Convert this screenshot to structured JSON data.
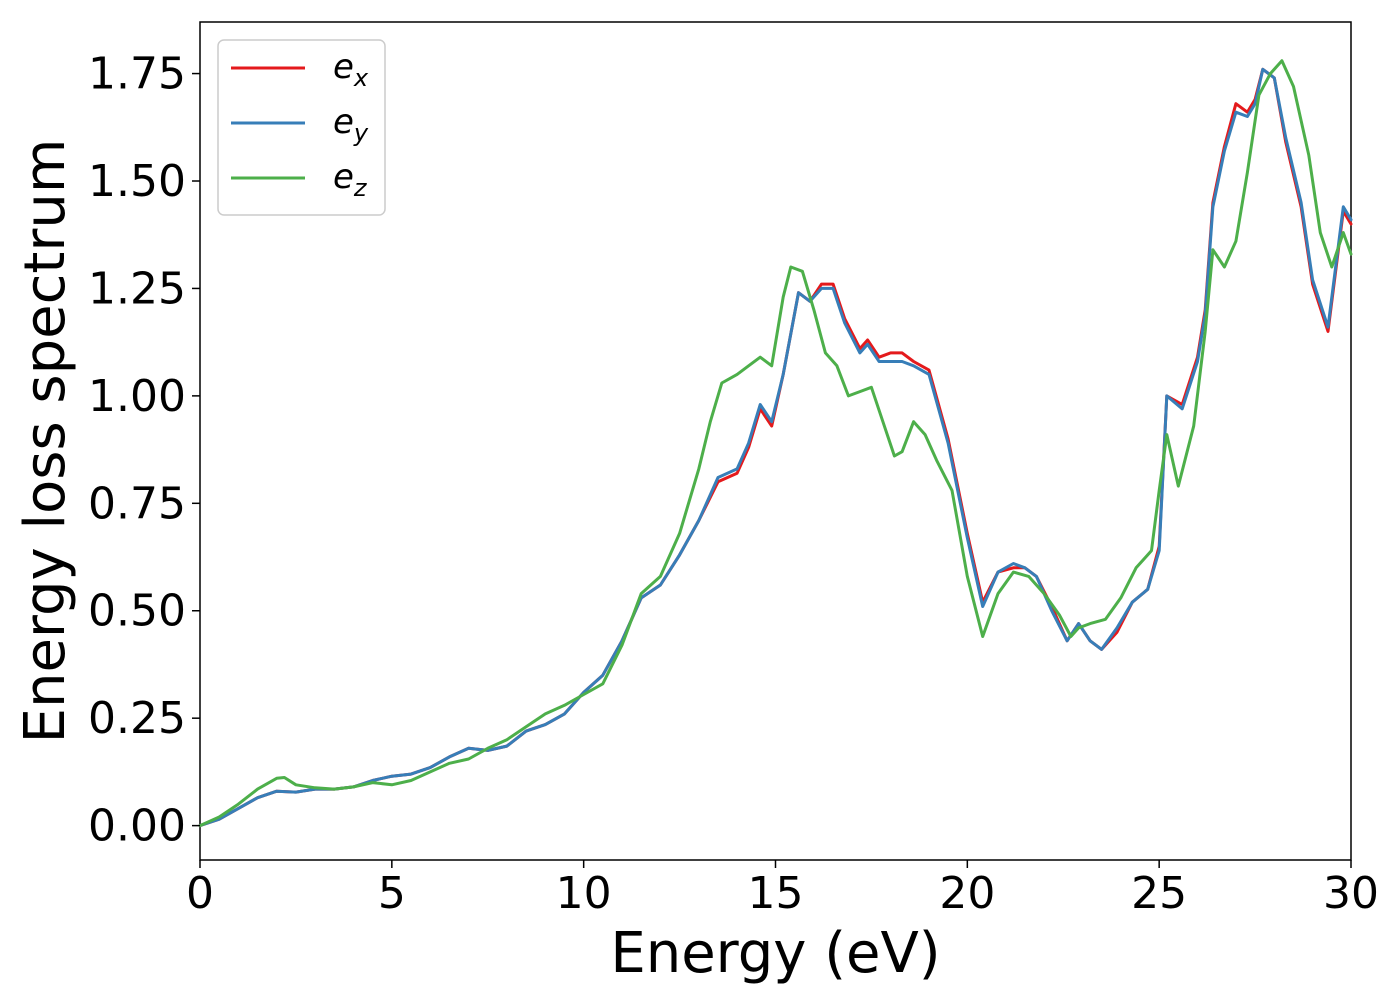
{
  "chart_data": {
    "type": "line",
    "title": "",
    "xlabel": "Energy (eV)",
    "ylabel": "Energy loss spectrum",
    "xlim": [
      0,
      30
    ],
    "ylim": [
      -0.08,
      1.87
    ],
    "x_ticks": [
      0,
      5,
      10,
      15,
      20,
      25,
      30
    ],
    "x_tick_labels": [
      "0",
      "5",
      "10",
      "15",
      "20",
      "25",
      "30"
    ],
    "y_ticks": [
      0.0,
      0.25,
      0.5,
      0.75,
      1.0,
      1.25,
      1.5,
      1.75
    ],
    "y_tick_labels": [
      "0.00",
      "0.25",
      "0.50",
      "0.75",
      "1.00",
      "1.25",
      "1.50",
      "1.75"
    ],
    "grid": false,
    "legend_position": "top-left",
    "series": [
      {
        "name": "e",
        "subscript": "x",
        "color": "#e41a1c",
        "points": [
          [
            0,
            0.0
          ],
          [
            0.5,
            0.015
          ],
          [
            1.0,
            0.04
          ],
          [
            1.5,
            0.065
          ],
          [
            2.0,
            0.08
          ],
          [
            2.5,
            0.078
          ],
          [
            3.0,
            0.085
          ],
          [
            3.5,
            0.085
          ],
          [
            4.0,
            0.09
          ],
          [
            4.5,
            0.105
          ],
          [
            5.0,
            0.115
          ],
          [
            5.5,
            0.12
          ],
          [
            6.0,
            0.135
          ],
          [
            6.5,
            0.16
          ],
          [
            7.0,
            0.18
          ],
          [
            7.5,
            0.175
          ],
          [
            8.0,
            0.185
          ],
          [
            8.5,
            0.22
          ],
          [
            9.0,
            0.235
          ],
          [
            9.5,
            0.26
          ],
          [
            10.0,
            0.31
          ],
          [
            10.5,
            0.35
          ],
          [
            11.0,
            0.43
          ],
          [
            11.5,
            0.53
          ],
          [
            12.0,
            0.56
          ],
          [
            12.5,
            0.63
          ],
          [
            13.0,
            0.71
          ],
          [
            13.5,
            0.8
          ],
          [
            14.0,
            0.82
          ],
          [
            14.3,
            0.88
          ],
          [
            14.6,
            0.97
          ],
          [
            14.9,
            0.93
          ],
          [
            15.2,
            1.05
          ],
          [
            15.6,
            1.24
          ],
          [
            15.9,
            1.22
          ],
          [
            16.2,
            1.26
          ],
          [
            16.5,
            1.26
          ],
          [
            16.8,
            1.18
          ],
          [
            17.2,
            1.11
          ],
          [
            17.4,
            1.13
          ],
          [
            17.7,
            1.09
          ],
          [
            18.0,
            1.1
          ],
          [
            18.3,
            1.1
          ],
          [
            18.6,
            1.08
          ],
          [
            19.0,
            1.06
          ],
          [
            19.5,
            0.9
          ],
          [
            20.0,
            0.68
          ],
          [
            20.4,
            0.52
          ],
          [
            20.8,
            0.59
          ],
          [
            21.2,
            0.6
          ],
          [
            21.5,
            0.6
          ],
          [
            21.8,
            0.58
          ],
          [
            22.2,
            0.51
          ],
          [
            22.6,
            0.43
          ],
          [
            22.9,
            0.47
          ],
          [
            23.2,
            0.43
          ],
          [
            23.5,
            0.41
          ],
          [
            23.9,
            0.45
          ],
          [
            24.3,
            0.52
          ],
          [
            24.7,
            0.55
          ],
          [
            25.0,
            0.65
          ],
          [
            25.2,
            1.0
          ],
          [
            25.6,
            0.98
          ],
          [
            26.0,
            1.09
          ],
          [
            26.2,
            1.2
          ],
          [
            26.4,
            1.45
          ],
          [
            26.7,
            1.58
          ],
          [
            27.0,
            1.68
          ],
          [
            27.3,
            1.66
          ],
          [
            27.5,
            1.69
          ],
          [
            27.7,
            1.76
          ],
          [
            28.0,
            1.74
          ],
          [
            28.3,
            1.59
          ],
          [
            28.7,
            1.44
          ],
          [
            29.0,
            1.26
          ],
          [
            29.4,
            1.15
          ],
          [
            29.8,
            1.43
          ],
          [
            30.0,
            1.4
          ]
        ]
      },
      {
        "name": "e",
        "subscript": "y",
        "color": "#377eb8",
        "points": [
          [
            0,
            0.0
          ],
          [
            0.5,
            0.015
          ],
          [
            1.0,
            0.04
          ],
          [
            1.5,
            0.065
          ],
          [
            2.0,
            0.08
          ],
          [
            2.5,
            0.078
          ],
          [
            3.0,
            0.085
          ],
          [
            3.5,
            0.085
          ],
          [
            4.0,
            0.09
          ],
          [
            4.5,
            0.105
          ],
          [
            5.0,
            0.115
          ],
          [
            5.5,
            0.12
          ],
          [
            6.0,
            0.135
          ],
          [
            6.5,
            0.16
          ],
          [
            7.0,
            0.18
          ],
          [
            7.5,
            0.175
          ],
          [
            8.0,
            0.185
          ],
          [
            8.5,
            0.22
          ],
          [
            9.0,
            0.235
          ],
          [
            9.5,
            0.26
          ],
          [
            10.0,
            0.31
          ],
          [
            10.5,
            0.35
          ],
          [
            11.0,
            0.43
          ],
          [
            11.5,
            0.53
          ],
          [
            12.0,
            0.56
          ],
          [
            12.5,
            0.63
          ],
          [
            13.0,
            0.71
          ],
          [
            13.5,
            0.81
          ],
          [
            14.0,
            0.83
          ],
          [
            14.3,
            0.89
          ],
          [
            14.6,
            0.98
          ],
          [
            14.9,
            0.94
          ],
          [
            15.2,
            1.05
          ],
          [
            15.6,
            1.24
          ],
          [
            15.9,
            1.22
          ],
          [
            16.2,
            1.25
          ],
          [
            16.5,
            1.25
          ],
          [
            16.8,
            1.17
          ],
          [
            17.2,
            1.1
          ],
          [
            17.4,
            1.12
          ],
          [
            17.7,
            1.08
          ],
          [
            18.0,
            1.08
          ],
          [
            18.3,
            1.08
          ],
          [
            18.6,
            1.07
          ],
          [
            19.0,
            1.05
          ],
          [
            19.5,
            0.89
          ],
          [
            20.0,
            0.67
          ],
          [
            20.4,
            0.51
          ],
          [
            20.8,
            0.59
          ],
          [
            21.2,
            0.61
          ],
          [
            21.5,
            0.6
          ],
          [
            21.8,
            0.58
          ],
          [
            22.2,
            0.5
          ],
          [
            22.6,
            0.43
          ],
          [
            22.9,
            0.47
          ],
          [
            23.2,
            0.43
          ],
          [
            23.5,
            0.41
          ],
          [
            23.9,
            0.46
          ],
          [
            24.3,
            0.52
          ],
          [
            24.7,
            0.55
          ],
          [
            25.0,
            0.64
          ],
          [
            25.2,
            1.0
          ],
          [
            25.6,
            0.97
          ],
          [
            26.0,
            1.08
          ],
          [
            26.2,
            1.19
          ],
          [
            26.4,
            1.44
          ],
          [
            26.7,
            1.57
          ],
          [
            27.0,
            1.66
          ],
          [
            27.3,
            1.65
          ],
          [
            27.5,
            1.68
          ],
          [
            27.7,
            1.76
          ],
          [
            28.0,
            1.74
          ],
          [
            28.3,
            1.6
          ],
          [
            28.7,
            1.45
          ],
          [
            29.0,
            1.27
          ],
          [
            29.4,
            1.16
          ],
          [
            29.8,
            1.44
          ],
          [
            30.0,
            1.41
          ]
        ]
      },
      {
        "name": "e",
        "subscript": "z",
        "color": "#4daf4a",
        "points": [
          [
            0,
            0.0
          ],
          [
            0.5,
            0.02
          ],
          [
            1.0,
            0.05
          ],
          [
            1.5,
            0.085
          ],
          [
            2.0,
            0.11
          ],
          [
            2.2,
            0.112
          ],
          [
            2.5,
            0.095
          ],
          [
            3.0,
            0.088
          ],
          [
            3.5,
            0.085
          ],
          [
            4.0,
            0.09
          ],
          [
            4.5,
            0.1
          ],
          [
            5.0,
            0.095
          ],
          [
            5.5,
            0.105
          ],
          [
            6.0,
            0.125
          ],
          [
            6.5,
            0.145
          ],
          [
            7.0,
            0.155
          ],
          [
            7.5,
            0.18
          ],
          [
            8.0,
            0.2
          ],
          [
            8.5,
            0.23
          ],
          [
            9.0,
            0.26
          ],
          [
            9.5,
            0.28
          ],
          [
            10.0,
            0.305
          ],
          [
            10.5,
            0.33
          ],
          [
            11.0,
            0.42
          ],
          [
            11.5,
            0.54
          ],
          [
            12.0,
            0.58
          ],
          [
            12.5,
            0.68
          ],
          [
            13.0,
            0.83
          ],
          [
            13.3,
            0.94
          ],
          [
            13.6,
            1.03
          ],
          [
            14.0,
            1.05
          ],
          [
            14.3,
            1.07
          ],
          [
            14.6,
            1.09
          ],
          [
            14.9,
            1.07
          ],
          [
            15.2,
            1.23
          ],
          [
            15.4,
            1.3
          ],
          [
            15.7,
            1.29
          ],
          [
            16.0,
            1.2
          ],
          [
            16.3,
            1.1
          ],
          [
            16.6,
            1.07
          ],
          [
            16.9,
            1.0
          ],
          [
            17.2,
            1.01
          ],
          [
            17.5,
            1.02
          ],
          [
            17.8,
            0.94
          ],
          [
            18.1,
            0.86
          ],
          [
            18.3,
            0.87
          ],
          [
            18.6,
            0.94
          ],
          [
            18.9,
            0.91
          ],
          [
            19.2,
            0.85
          ],
          [
            19.6,
            0.78
          ],
          [
            20.0,
            0.58
          ],
          [
            20.4,
            0.44
          ],
          [
            20.8,
            0.54
          ],
          [
            21.2,
            0.59
          ],
          [
            21.6,
            0.58
          ],
          [
            22.0,
            0.54
          ],
          [
            22.4,
            0.49
          ],
          [
            22.7,
            0.44
          ],
          [
            22.9,
            0.46
          ],
          [
            23.2,
            0.47
          ],
          [
            23.6,
            0.48
          ],
          [
            24.0,
            0.53
          ],
          [
            24.4,
            0.6
          ],
          [
            24.8,
            0.64
          ],
          [
            25.0,
            0.78
          ],
          [
            25.2,
            0.91
          ],
          [
            25.5,
            0.79
          ],
          [
            25.9,
            0.93
          ],
          [
            26.2,
            1.15
          ],
          [
            26.4,
            1.34
          ],
          [
            26.7,
            1.3
          ],
          [
            27.0,
            1.36
          ],
          [
            27.3,
            1.52
          ],
          [
            27.6,
            1.7
          ],
          [
            27.9,
            1.75
          ],
          [
            28.2,
            1.78
          ],
          [
            28.5,
            1.72
          ],
          [
            28.9,
            1.56
          ],
          [
            29.2,
            1.38
          ],
          [
            29.5,
            1.3
          ],
          [
            29.8,
            1.38
          ],
          [
            30.0,
            1.33
          ]
        ]
      }
    ]
  }
}
